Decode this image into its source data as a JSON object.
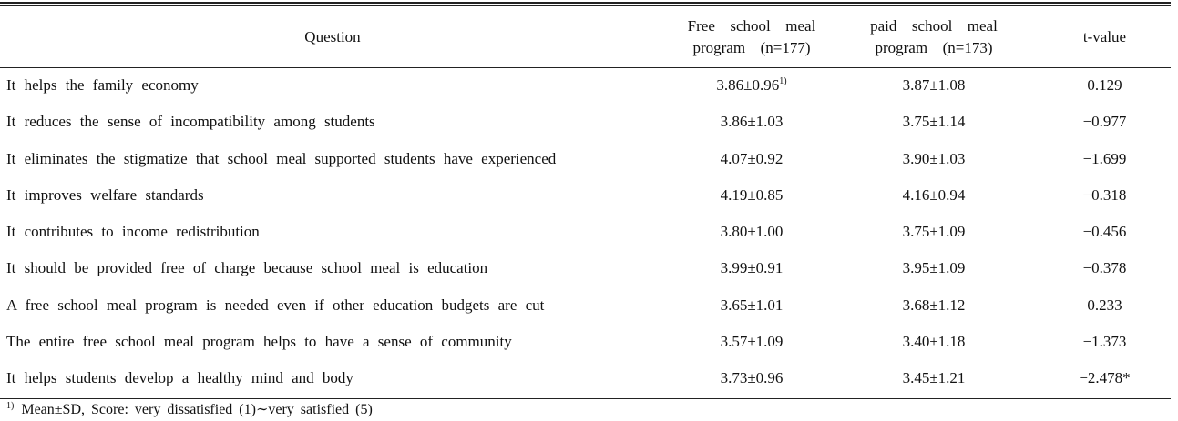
{
  "header": {
    "question": "Question",
    "free_line1": "Free  school  meal",
    "free_line2": "program  (n=177)",
    "paid_line1": "paid  school  meal",
    "paid_line2": "program  (n=173)",
    "t_value": "t-value"
  },
  "rows": [
    {
      "question": "It helps the family economy",
      "free": "3.86±0.96",
      "free_sup": "1)",
      "paid": "3.87±1.08",
      "t": "0.129"
    },
    {
      "question": "It reduces the sense of incompatibility among students",
      "free": "3.86±1.03",
      "free_sup": "",
      "paid": "3.75±1.14",
      "t": "−0.977"
    },
    {
      "question": "It eliminates the stigmatize that school meal supported students have experienced",
      "free": "4.07±0.92",
      "free_sup": "",
      "paid": "3.90±1.03",
      "t": "−1.699"
    },
    {
      "question": "It improves welfare standards",
      "free": "4.19±0.85",
      "free_sup": "",
      "paid": "4.16±0.94",
      "t": "−0.318"
    },
    {
      "question": "It contributes to income redistribution",
      "free": "3.80±1.00",
      "free_sup": "",
      "paid": "3.75±1.09",
      "t": "−0.456"
    },
    {
      "question": "It should be provided free of charge because school meal is education",
      "free": "3.99±0.91",
      "free_sup": "",
      "paid": "3.95±1.09",
      "t": "−0.378"
    },
    {
      "question": "A free school meal program is needed even if other education budgets are cut",
      "free": "3.65±1.01",
      "free_sup": "",
      "paid": "3.68±1.12",
      "t": "0.233"
    },
    {
      "question": "The entire free school meal program helps to have a sense of community",
      "free": "3.57±1.09",
      "free_sup": "",
      "paid": "3.40±1.18",
      "t": "−1.373"
    },
    {
      "question": "It helps students develop a healthy mind and body",
      "free": "3.73±0.96",
      "free_sup": "",
      "paid": "3.45±1.21",
      "t": "−2.478*"
    }
  ],
  "footnote": {
    "marker": "1)",
    "text": "Mean±SD, Score: very dissatisfied (1)∼very satisfied (5)"
  }
}
